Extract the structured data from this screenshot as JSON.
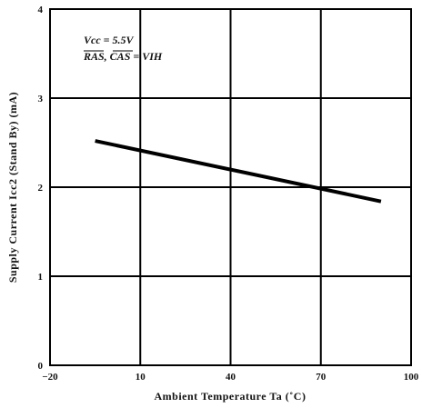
{
  "chart_data": {
    "type": "line",
    "title": "",
    "xlabel": "Ambient Temperature  Ta (˚C)",
    "ylabel": "Supply Current  Icc2  (Stand By)  (mA)",
    "xlim": [
      -20,
      100
    ],
    "ylim": [
      0,
      4
    ],
    "x_ticks": [
      -20,
      10,
      40,
      70,
      100
    ],
    "x_tick_labels": [
      "−20",
      "10",
      "40",
      "70",
      "100"
    ],
    "y_ticks": [
      0,
      1,
      2,
      3,
      4
    ],
    "y_tick_labels": [
      "0",
      "1",
      "2",
      "3",
      "4"
    ],
    "grid": true,
    "annotation_lines": [
      "Vcc = 5.5V",
      "RAS, CAS = VIH"
    ],
    "series": [
      {
        "x": [
          -5,
          90
        ],
        "y": [
          2.52,
          1.84
        ],
        "color": "#000000"
      }
    ]
  }
}
